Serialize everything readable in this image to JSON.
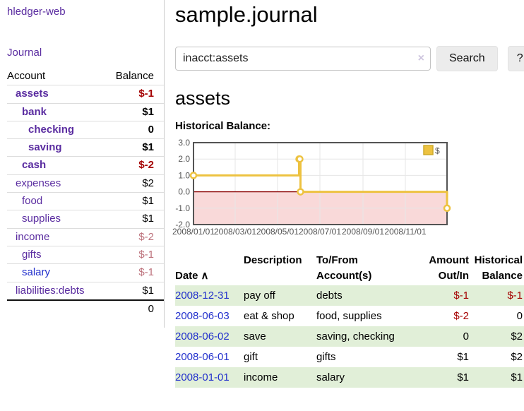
{
  "sidebar": {
    "app_title": "hledger-web",
    "journal_link": "Journal",
    "accounts_table": {
      "col_account": "Account",
      "col_balance": "Balance",
      "rows": [
        {
          "name": "assets",
          "balance": "$-1",
          "depth": 0,
          "emph": true,
          "neg": "strong"
        },
        {
          "name": "bank",
          "balance": "$1",
          "depth": 1,
          "emph": true,
          "neg": "none"
        },
        {
          "name": "checking",
          "balance": "0",
          "depth": 2,
          "emph": true,
          "neg": "none"
        },
        {
          "name": "saving",
          "balance": "$1",
          "depth": 2,
          "emph": true,
          "neg": "none"
        },
        {
          "name": "cash",
          "balance": "$-2",
          "depth": 1,
          "emph": true,
          "neg": "strong"
        },
        {
          "name": "expenses",
          "balance": "$2",
          "depth": 0,
          "emph": false,
          "neg": "none"
        },
        {
          "name": "food",
          "balance": "$1",
          "depth": 1,
          "emph": false,
          "neg": "none"
        },
        {
          "name": "supplies",
          "balance": "$1",
          "depth": 1,
          "emph": false,
          "neg": "none"
        },
        {
          "name": "income",
          "balance": "$-2",
          "depth": 0,
          "emph": false,
          "neg": "soft"
        },
        {
          "name": "gifts",
          "balance": "$-1",
          "depth": 1,
          "emph": false,
          "neg": "soft"
        },
        {
          "name": "salary",
          "balance": "$-1",
          "depth": 1,
          "emph": false,
          "neg": "soft",
          "link_blue": true
        },
        {
          "name": "liabilities:debts",
          "balance": "$1",
          "depth": 0,
          "emph": false,
          "neg": "none"
        }
      ],
      "total": "0"
    }
  },
  "header": {
    "title": "sample.journal"
  },
  "search": {
    "query": "inacct:assets",
    "clear_icon": "×",
    "search_button": "Search",
    "help_button": "?"
  },
  "account_page": {
    "heading": "assets",
    "chart_title": "Historical Balance:"
  },
  "chart_data": {
    "type": "line",
    "step": true,
    "title": "Historical Balance:",
    "series": [
      {
        "name": "$",
        "color": "#edc240",
        "points": [
          [
            "2008-01-01",
            1
          ],
          [
            "2008-06-01",
            2
          ],
          [
            "2008-06-02",
            2
          ],
          [
            "2008-06-03",
            0
          ],
          [
            "2008-12-31",
            -1
          ]
        ]
      }
    ],
    "xlim": [
      "2008-01-01",
      "2008-12-31"
    ],
    "ylim": [
      -2,
      3
    ],
    "y_ticks": [
      "3.0",
      "2.0",
      "1.0",
      "0.0",
      "-1.0",
      "-2.0"
    ],
    "x_ticks": [
      "2008/01/01",
      "2008/03/01",
      "2008/05/01",
      "2008/07/01",
      "2008/09/01",
      "2008/11/01"
    ],
    "grid": true,
    "legend_position": "top-right",
    "negative_region_fill": "#f9d9d9",
    "zero_line_color": "#8b0000",
    "border_color": "#545454",
    "gridline_color": "#e6e6e6"
  },
  "register_table": {
    "columns": {
      "date": "Date",
      "sort_indicator": "∧",
      "description": "Description",
      "accounts": "To/From\nAccount(s)",
      "amount": "Amount\nOut/In",
      "balance": "Historical\nBalance"
    },
    "rows": [
      {
        "date": "2008-12-31",
        "description": "pay off",
        "accounts": "debts",
        "amount": "$-1",
        "balance": "$-1"
      },
      {
        "date": "2008-06-03",
        "description": "eat & shop",
        "accounts": "food, supplies",
        "amount": "$-2",
        "balance": "0"
      },
      {
        "date": "2008-06-02",
        "description": "save",
        "accounts": "saving, checking",
        "amount": "0",
        "balance": "$2"
      },
      {
        "date": "2008-06-01",
        "description": "gift",
        "accounts": "gifts",
        "amount": "$1",
        "balance": "$2"
      },
      {
        "date": "2008-01-01",
        "description": "income",
        "accounts": "salary",
        "amount": "$1",
        "balance": "$1"
      }
    ]
  },
  "colors": {
    "link_purple": "#5a2ca0",
    "link_blue": "#2230cc",
    "negative_strong": "#a40000",
    "negative_soft": "#bd727c",
    "row_stripe_green": "#e1efd8",
    "chart_line_gold": "#edc240",
    "chart_negative_region": "#f9d9d9",
    "chart_zero_line": "#8b0000"
  }
}
